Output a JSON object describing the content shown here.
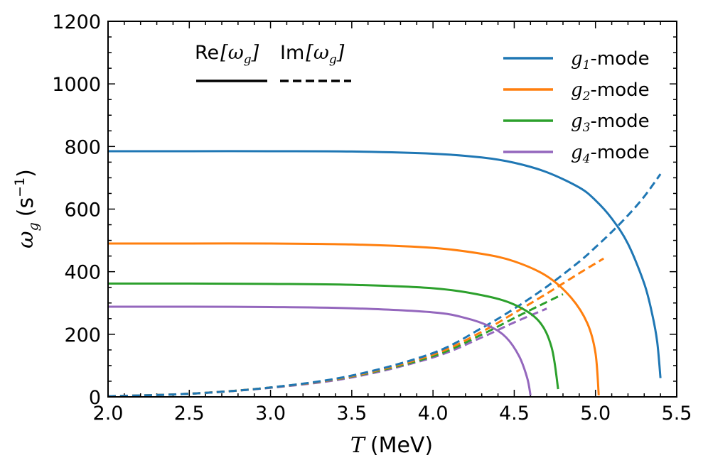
{
  "chart_data": {
    "type": "line",
    "xlabel": {
      "symbol": "T",
      "unit": "(MeV)"
    },
    "ylabel": {
      "symbol": "ω",
      "subscript": "g",
      "unit_prefix": "(s",
      "unit_exp": "−1",
      "unit_suffix": ")"
    },
    "xlim": [
      2.0,
      5.5
    ],
    "ylim": [
      0,
      1200
    ],
    "x_ticks": [
      2.0,
      2.5,
      3.0,
      3.5,
      4.0,
      4.5,
      5.0,
      5.5
    ],
    "x_tick_labels": [
      "2.0",
      "2.5",
      "3.0",
      "3.5",
      "4.0",
      "4.5",
      "5.0",
      "5.5"
    ],
    "y_ticks": [
      0,
      200,
      400,
      600,
      800,
      1000,
      1200
    ],
    "y_tick_labels": [
      "0",
      "200",
      "400",
      "600",
      "800",
      "1000",
      "1200"
    ],
    "style_legend": {
      "solid": {
        "prefix": "Re",
        "symbol": "ω",
        "subscript": "g"
      },
      "dashed": {
        "prefix": "Im",
        "symbol": "ω",
        "subscript": "g"
      }
    },
    "series": [
      {
        "name": "g1-mode",
        "label_symbol": "g",
        "label_sub": "1",
        "label_suffix": "-mode",
        "color": "#1f77b4",
        "re": {
          "x": [
            2.0,
            2.5,
            3.0,
            3.5,
            4.0,
            4.3,
            4.5,
            4.7,
            4.9,
            5.0,
            5.1,
            5.2,
            5.3,
            5.35,
            5.38,
            5.4
          ],
          "y": [
            785,
            785,
            785,
            784,
            777,
            765,
            748,
            718,
            669,
            628,
            570,
            489,
            362,
            262,
            175,
            60
          ]
        },
        "im": {
          "x": [
            2.0,
            2.5,
            3.0,
            3.5,
            4.0,
            4.3,
            4.5,
            4.7,
            4.9,
            5.0,
            5.1,
            5.2,
            5.3,
            5.4
          ],
          "y": [
            2,
            10,
            30,
            68,
            140,
            220,
            282,
            352,
            432,
            478,
            527,
            580,
            640,
            712
          ]
        }
      },
      {
        "name": "g2-mode",
        "label_symbol": "g",
        "label_sub": "2",
        "label_suffix": "-mode",
        "color": "#ff7f0e",
        "re": {
          "x": [
            2.0,
            2.5,
            3.0,
            3.5,
            4.0,
            4.3,
            4.5,
            4.7,
            4.85,
            4.95,
            5.0,
            5.02
          ],
          "y": [
            490,
            490,
            490,
            487,
            476,
            457,
            433,
            386,
            317,
            235,
            140,
            5
          ]
        },
        "im": {
          "x": [
            2.0,
            2.5,
            3.0,
            3.5,
            4.0,
            4.3,
            4.5,
            4.7,
            4.9,
            5.05
          ],
          "y": [
            2,
            10,
            30,
            66,
            135,
            208,
            268,
            330,
            395,
            442
          ]
        }
      },
      {
        "name": "g3-mode",
        "label_symbol": "g",
        "label_sub": "3",
        "label_suffix": "-mode",
        "color": "#2ca02c",
        "re": {
          "x": [
            2.0,
            2.5,
            3.0,
            3.5,
            4.0,
            4.3,
            4.5,
            4.65,
            4.73,
            4.77
          ],
          "y": [
            362,
            362,
            361,
            358,
            347,
            325,
            295,
            243,
            158,
            25
          ]
        },
        "im": {
          "x": [
            2.0,
            2.5,
            3.0,
            3.5,
            4.0,
            4.3,
            4.5,
            4.7,
            4.8
          ],
          "y": [
            2,
            10,
            30,
            65,
            130,
            199,
            252,
            303,
            328
          ]
        }
      },
      {
        "name": "g4-mode",
        "label_symbol": "g",
        "label_sub": "4",
        "label_suffix": "-mode",
        "color": "#9467bd",
        "re": {
          "x": [
            2.0,
            2.5,
            3.0,
            3.5,
            4.0,
            4.2,
            4.35,
            4.45,
            4.53,
            4.58,
            4.6
          ],
          "y": [
            288,
            288,
            287,
            283,
            270,
            252,
            225,
            190,
            130,
            60,
            5
          ]
        },
        "im": {
          "x": [
            2.0,
            2.5,
            3.0,
            3.5,
            4.0,
            4.3,
            4.5,
            4.7
          ],
          "y": [
            2,
            10,
            29,
            62,
            126,
            190,
            238,
            282
          ]
        }
      }
    ]
  }
}
